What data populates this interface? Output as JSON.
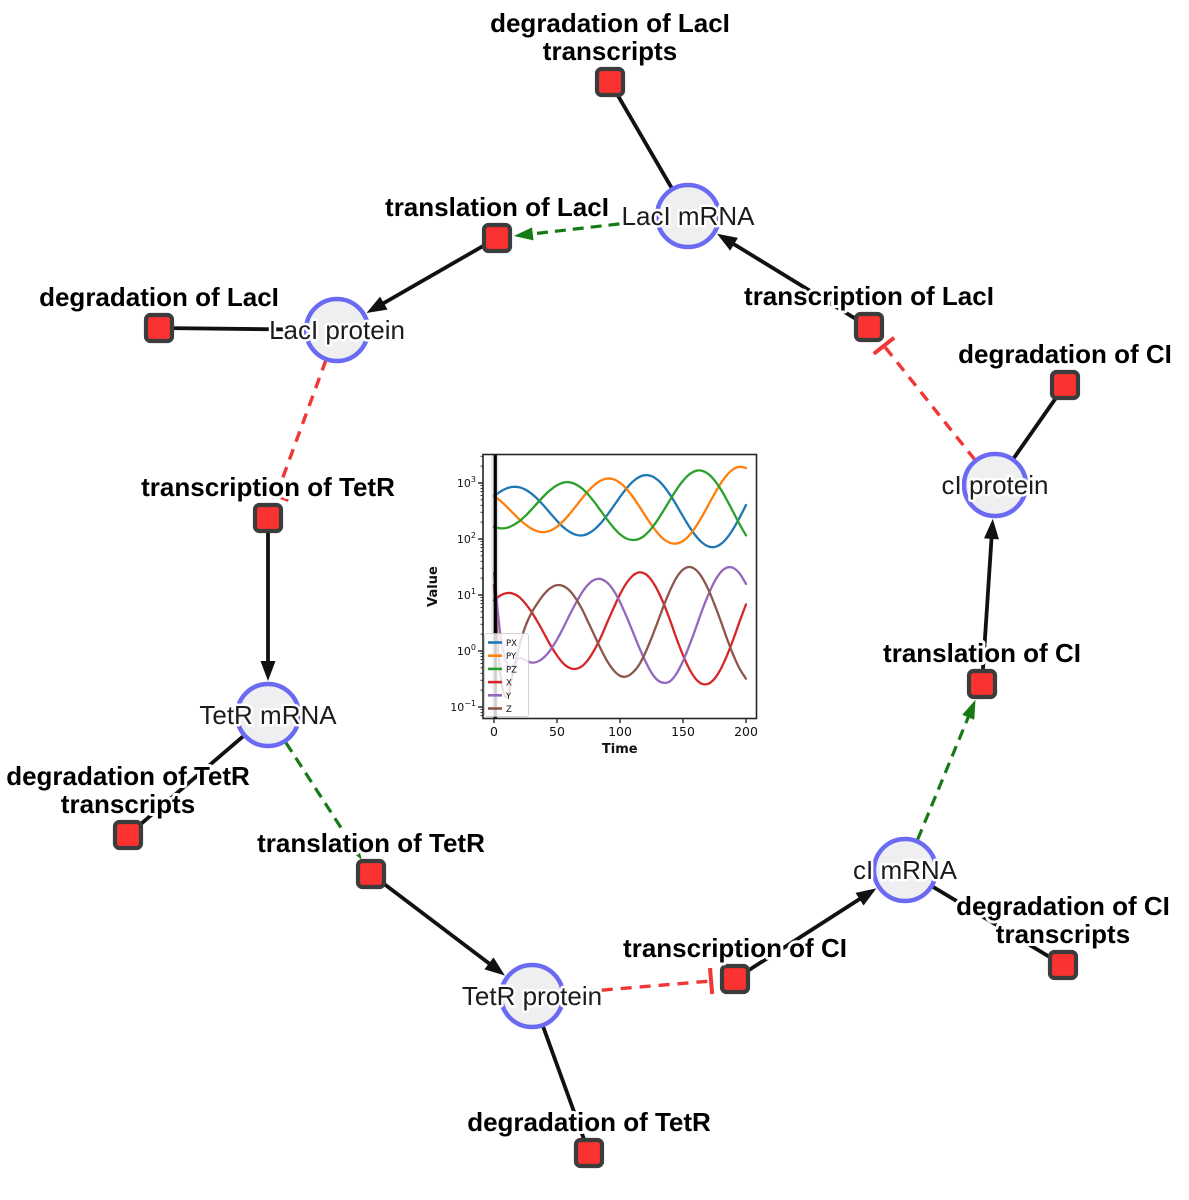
{
  "colors": {
    "species_fill": "#efeff2",
    "species_stroke": "#6a6af2",
    "reaction_fill": "#fa3232",
    "reaction_stroke": "#3c3c3c",
    "edge_black": "#111111",
    "edge_green": "#157a15",
    "edge_red": "#f23535",
    "background": "#ffffff"
  },
  "diagram": {
    "species_nodes": [
      {
        "id": "laci_mrna",
        "label": "LacI mRNA"
      },
      {
        "id": "laci_protein",
        "label": "LacI protein"
      },
      {
        "id": "tetr_mrna",
        "label": "TetR mRNA"
      },
      {
        "id": "tetr_protein",
        "label": "TetR protein"
      },
      {
        "id": "ci_mrna",
        "label": "cI mRNA"
      },
      {
        "id": "ci_protein",
        "label": "cI protein"
      }
    ],
    "reaction_nodes": [
      {
        "id": "deg_laci_tx",
        "label_lines": [
          "degradation of LacI",
          "transcripts"
        ]
      },
      {
        "id": "trans_laci",
        "label_lines": [
          "translation of LacI"
        ]
      },
      {
        "id": "deg_laci",
        "label_lines": [
          "degradation of LacI"
        ]
      },
      {
        "id": "txn_laci",
        "label_lines": [
          "transcription of LacI"
        ]
      },
      {
        "id": "deg_ci",
        "label_lines": [
          "degradation of CI"
        ]
      },
      {
        "id": "txn_tetr",
        "label_lines": [
          "transcription of TetR"
        ]
      },
      {
        "id": "deg_tetr_tx",
        "label_lines": [
          "degradation of TetR",
          "transcripts"
        ]
      },
      {
        "id": "trans_tetr",
        "label_lines": [
          "translation of TetR"
        ]
      },
      {
        "id": "deg_tetr",
        "label_lines": [
          "degradation of TetR"
        ]
      },
      {
        "id": "txn_ci",
        "label_lines": [
          "transcription of CI"
        ]
      },
      {
        "id": "deg_ci_tx",
        "label_lines": [
          "degradation of CI",
          "transcripts"
        ]
      },
      {
        "id": "trans_ci",
        "label_lines": [
          "translation of CI"
        ]
      }
    ],
    "edges": [
      {
        "from": "laci_mrna",
        "to": "deg_laci_tx",
        "kind": "consumption"
      },
      {
        "from": "txn_laci",
        "to": "laci_mrna",
        "kind": "production"
      },
      {
        "from": "laci_mrna",
        "to": "trans_laci",
        "kind": "modifier"
      },
      {
        "from": "trans_laci",
        "to": "laci_protein",
        "kind": "production"
      },
      {
        "from": "laci_protein",
        "to": "deg_laci",
        "kind": "consumption"
      },
      {
        "from": "laci_protein",
        "to": "txn_tetr",
        "kind": "inhibition"
      },
      {
        "from": "txn_tetr",
        "to": "tetr_mrna",
        "kind": "production"
      },
      {
        "from": "tetr_mrna",
        "to": "deg_tetr_tx",
        "kind": "consumption"
      },
      {
        "from": "tetr_mrna",
        "to": "trans_tetr",
        "kind": "modifier"
      },
      {
        "from": "trans_tetr",
        "to": "tetr_protein",
        "kind": "production"
      },
      {
        "from": "tetr_protein",
        "to": "deg_tetr",
        "kind": "consumption"
      },
      {
        "from": "tetr_protein",
        "to": "txn_ci",
        "kind": "inhibition"
      },
      {
        "from": "txn_ci",
        "to": "ci_mrna",
        "kind": "production"
      },
      {
        "from": "ci_mrna",
        "to": "deg_ci_tx",
        "kind": "consumption"
      },
      {
        "from": "ci_mrna",
        "to": "trans_ci",
        "kind": "modifier"
      },
      {
        "from": "trans_ci",
        "to": "ci_protein",
        "kind": "production"
      },
      {
        "from": "ci_protein",
        "to": "deg_ci",
        "kind": "consumption"
      },
      {
        "from": "ci_protein",
        "to": "txn_laci",
        "kind": "inhibition"
      }
    ]
  },
  "chart_data": {
    "type": "line",
    "xlabel": "Time",
    "ylabel": "Value",
    "yscale": "log",
    "xlim": [
      0,
      200
    ],
    "ylim": [
      0.07,
      3200
    ],
    "xticks": [
      0,
      50,
      100,
      150,
      200
    ],
    "ytick_base": "10",
    "ytick_exponents": [
      "−1",
      "0",
      "1",
      "2",
      "3"
    ],
    "legend_position": "lower left",
    "grid": false,
    "vline_at_t": 1,
    "t": [
      0,
      5,
      10,
      15,
      20,
      25,
      30,
      35,
      40,
      45,
      50,
      55,
      60,
      65,
      70,
      75,
      80,
      85,
      90,
      95,
      100,
      105,
      110,
      115,
      120,
      125,
      130,
      135,
      140,
      145,
      150,
      155,
      160,
      165,
      170,
      175,
      180,
      185,
      190,
      195,
      200
    ],
    "series": [
      {
        "name": "PX",
        "color": "#1f77b4",
        "values": [
          586,
          703,
          801,
          851,
          837,
          759,
          639,
          505,
          382,
          283,
          211,
          163,
          134,
          119,
          116,
          126,
          150,
          195,
          270,
          389,
          564,
          793,
          1049,
          1271,
          1380,
          1327,
          1132,
          864,
          603,
          396,
          254,
          166,
          115,
          87,
          74,
          72,
          81,
          105,
          153,
          243,
          404
        ]
      },
      {
        "name": "PY",
        "color": "#ff7f0e",
        "values": [
          586,
          481,
          378,
          292,
          226,
          181,
          152,
          136,
          133,
          142,
          166,
          209,
          279,
          386,
          536,
          728,
          936,
          1114,
          1202,
          1164,
          1009,
          793,
          573,
          392,
          262,
          178,
          127,
          98,
          85,
          83,
          92,
          116,
          164,
          250,
          400,
          639,
          983,
          1396,
          1770,
          1950,
          1849
        ]
      },
      {
        "name": "PZ",
        "color": "#2ca02c",
        "values": [
          163,
          155,
          158,
          175,
          207,
          260,
          340,
          453,
          597,
          760,
          914,
          1016,
          1028,
          946,
          793,
          612,
          445,
          313,
          220,
          159,
          122,
          102,
          96,
          100,
          118,
          155,
          221,
          333,
          511,
          769,
          1094,
          1422,
          1641,
          1656,
          1453,
          1119,
          769,
          489,
          298,
          182,
          116
        ]
      },
      {
        "name": "X",
        "color": "#d62728",
        "values": [
          8.0,
          9.8,
          10.8,
          10.6,
          9.2,
          7.0,
          4.9,
          3.2,
          2.0,
          1.25,
          0.83,
          0.6,
          0.5,
          0.48,
          0.54,
          0.71,
          1.08,
          1.8,
          3.3,
          5.9,
          10.3,
          16.1,
          22.0,
          25.3,
          23.8,
          18.4,
          11.9,
          6.7,
          3.4,
          1.64,
          0.84,
          0.48,
          0.32,
          0.26,
          0.26,
          0.32,
          0.48,
          0.84,
          1.64,
          3.4,
          6.8
        ]
      },
      {
        "name": "Y",
        "color": "#9467bd",
        "values": [
          25,
          2.0,
          0.6,
          0.55,
          0.75,
          0.68,
          0.62,
          0.65,
          0.78,
          1.06,
          1.6,
          2.6,
          4.4,
          7.2,
          11.2,
          15.6,
          18.8,
          19.2,
          16.5,
          12.0,
          7.5,
          4.2,
          2.25,
          1.19,
          0.67,
          0.41,
          0.3,
          0.27,
          0.29,
          0.4,
          0.66,
          1.25,
          2.5,
          5.2,
          10.0,
          17.4,
          25.6,
          31.0,
          30.4,
          24.1,
          15.8
        ]
      },
      {
        "name": "Z",
        "color": "#8c564b",
        "values": [
          15,
          0.4,
          0.15,
          0.4,
          1.2,
          2.8,
          4.9,
          7.4,
          10.5,
          13.4,
          15.0,
          14.4,
          12.0,
          8.6,
          5.5,
          3.2,
          1.84,
          1.06,
          0.65,
          0.45,
          0.36,
          0.35,
          0.41,
          0.56,
          0.92,
          1.7,
          3.35,
          6.7,
          12.5,
          20.8,
          28.4,
          31.6,
          28.4,
          20.8,
          12.7,
          6.8,
          3.4,
          1.64,
          0.84,
          0.48,
          0.32
        ]
      }
    ]
  }
}
